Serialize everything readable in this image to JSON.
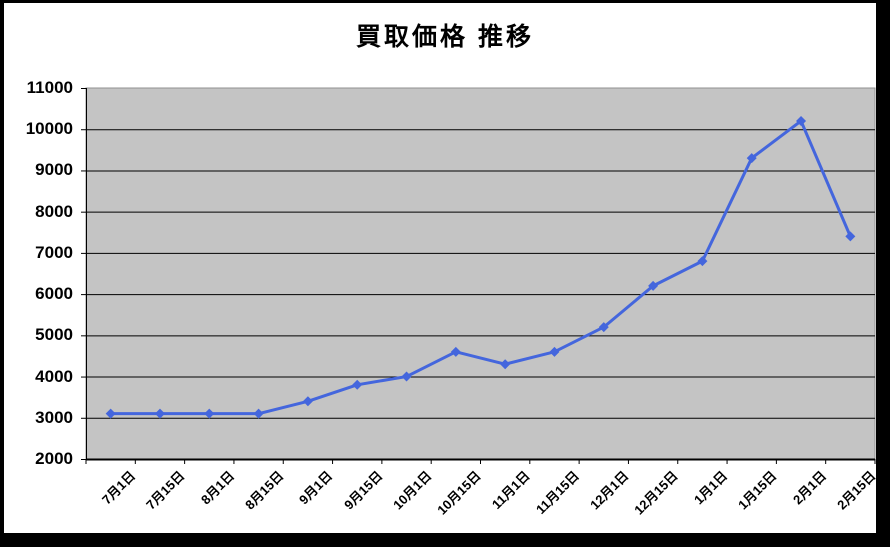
{
  "chart_data": {
    "type": "line",
    "title": "買取価格 推移",
    "categories": [
      "7月1日",
      "7月15日",
      "8月1日",
      "8月15日",
      "9月1日",
      "9月15日",
      "10月1日",
      "10月15日",
      "11月1日",
      "11月15日",
      "12月1日",
      "12月15日",
      "1月1日",
      "1月15日",
      "2月1日",
      "2月15日"
    ],
    "series": [
      {
        "name": "買取価格",
        "values": [
          3100,
          3100,
          3100,
          3100,
          3400,
          3800,
          4000,
          4600,
          4300,
          4600,
          5200,
          6200,
          6800,
          9300,
          10200,
          7400
        ]
      }
    ],
    "xlabel": "",
    "ylabel": "",
    "ylim": [
      2000,
      11000
    ],
    "ytick_step": 1000,
    "yticks": [
      11000,
      10000,
      9000,
      8000,
      7000,
      6000,
      5000,
      4000,
      3000,
      2000
    ],
    "grid": "horizontal-major",
    "legend": "none",
    "marker": "diamond",
    "x_label_rotation_deg": -45,
    "colors": {
      "series": "#4466DD",
      "plot_bg": "#C4C4C4",
      "grid": "#000000",
      "axis": "#000000",
      "plot_border": "#909090",
      "text": "#000000",
      "canvas_bg": "#FFFFFF",
      "frame": "#000000"
    }
  }
}
